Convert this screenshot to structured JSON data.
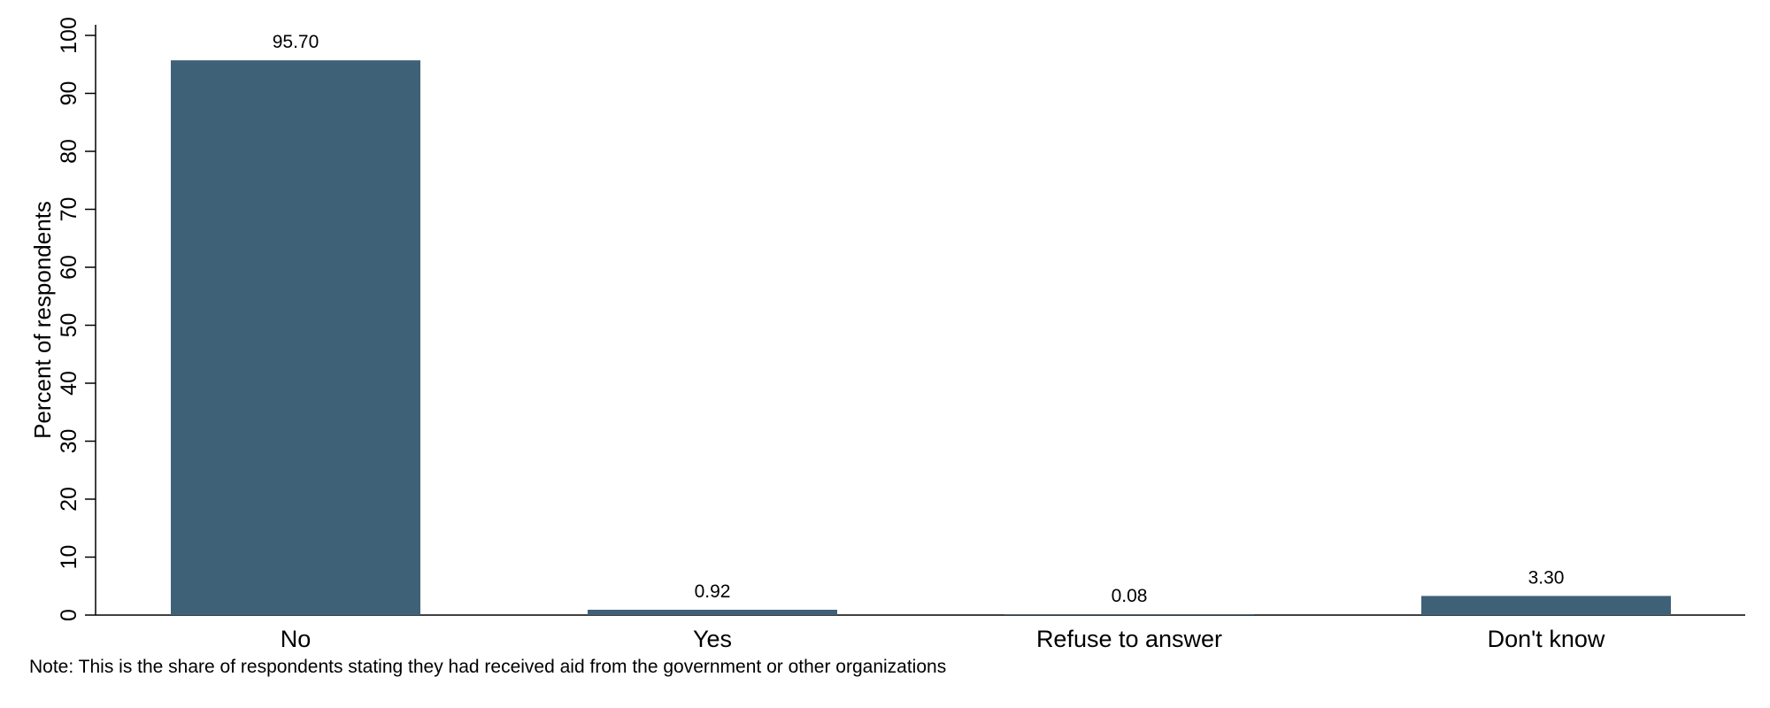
{
  "chart_data": {
    "type": "bar",
    "categories": [
      "No",
      "Yes",
      "Refuse to answer",
      "Don't know"
    ],
    "values": [
      95.7,
      0.92,
      0.08,
      3.3
    ],
    "value_labels": [
      "95.70",
      "0.92",
      "0.08",
      "3.30"
    ],
    "title": "",
    "xlabel": "",
    "ylabel": "Percent of respondents",
    "ylim": [
      0,
      100
    ],
    "yticks": [
      0,
      10,
      20,
      30,
      40,
      50,
      60,
      70,
      80,
      90,
      100
    ],
    "grid": false,
    "legend": "none",
    "bar_color": "#3f6178",
    "note": "Note: This is the share of respondents stating they had received aid from the government or other organizations"
  }
}
